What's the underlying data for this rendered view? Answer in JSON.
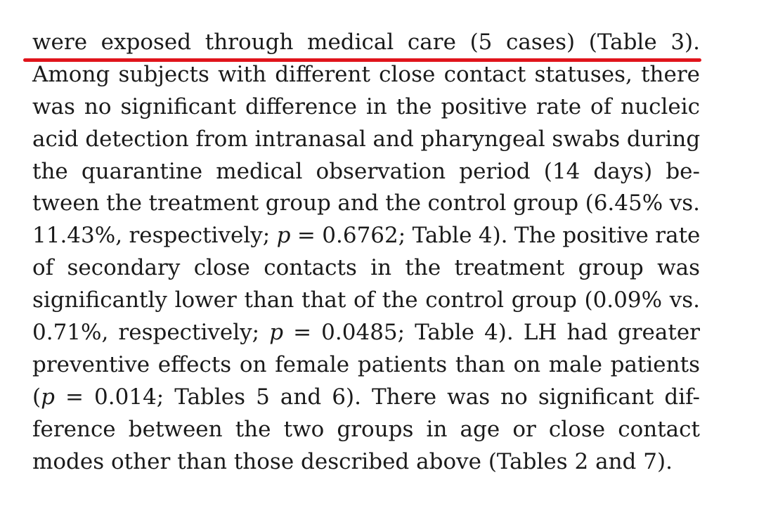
{
  "paragraph": {
    "lines": [
      "were exposed through medical care (5 cases) (Table 3).",
      "Among subjects with different close contact statuses, there",
      "was no significant difference in the positive rate of nucleic",
      "acid detection from intranasal and pharyngeal swabs during",
      "the quarantine medical observation period (14 days) be-",
      "tween the treatment group and the control group (6.45% vs.",
      "11.43%, respectively; ",
      "p",
      " = 0.6762; Table 4). The positive rate",
      "of secondary close contacts in the treatment group was",
      "significantly lower than that of the control group (0.09% vs.",
      "0.71%, respectively; ",
      "p",
      " = 0.0485; Table 4). LH had greater",
      "preventive effects on female patients than on male patients",
      "(",
      "p",
      " = 0.014; Tables 5 and 6). There was no significant dif-",
      "ference between the two groups in age or close contact",
      "modes other than those described above (Tables 2 and 7)."
    ]
  },
  "annotation": {
    "underline_color": "#e0141b"
  }
}
